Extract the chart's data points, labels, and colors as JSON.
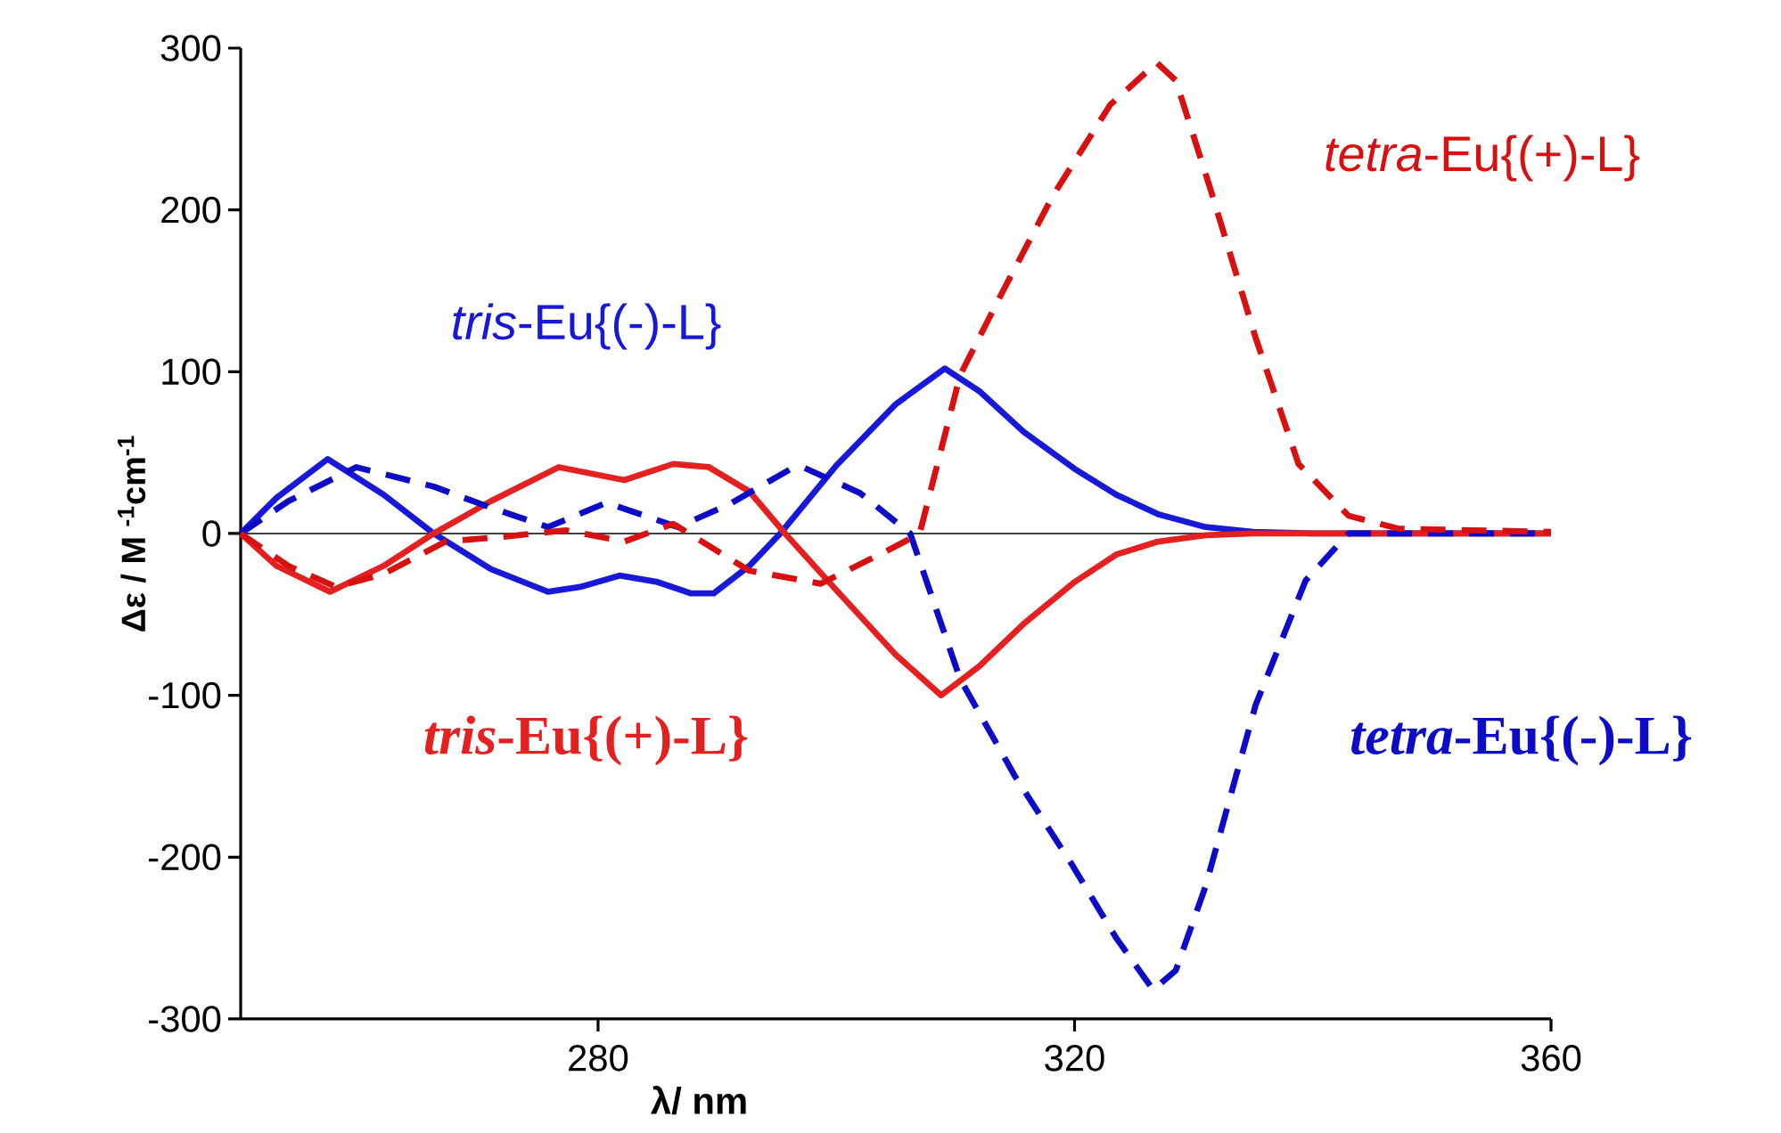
{
  "chart_data": {
    "type": "line",
    "xlabel": "λ/ nm",
    "ylabel": "Δε / M $^{-1}$cm$^{-1}$",
    "xlim": [
      250,
      360
    ],
    "xticks": [
      280,
      320,
      360
    ],
    "ylim": [
      -300,
      300
    ],
    "yticks": [
      -300,
      -200,
      -100,
      0,
      100,
      200,
      300
    ],
    "grid": false,
    "marker": "none",
    "ref_lines": [
      {
        "axis": "y",
        "value": 0,
        "color": "#000000"
      }
    ],
    "series": [
      {
        "name": "*tris*-Eu{(-)-L}",
        "color": "#1818d8",
        "line_style": "solid",
        "x": [
          250,
          253,
          257.3,
          262,
          266.2,
          271,
          275.8,
          278.5,
          281.8,
          285,
          287.8,
          289.7,
          292.7,
          295.3,
          300,
          305,
          309.1,
          312,
          315.7,
          320,
          323.5,
          327,
          331,
          335,
          340,
          350,
          360
        ],
        "values": [
          0,
          22,
          46,
          24,
          0,
          -22,
          -36,
          -33,
          -26,
          -30,
          -37,
          -37,
          -20,
          0,
          42,
          80,
          102,
          88,
          63,
          40,
          24,
          12,
          4,
          1,
          0,
          0,
          0
        ]
      },
      {
        "name": "*tris*-Eu{(+)-L}",
        "color": "#e42020",
        "line_style": "solid",
        "x": [
          250,
          253,
          257.5,
          262,
          266.2,
          271,
          276.7,
          282.2,
          286.3,
          289.3,
          292.7,
          295.7,
          300,
          305,
          308.8,
          312,
          315.7,
          320,
          323.5,
          327,
          331,
          335,
          340,
          350,
          360
        ],
        "values": [
          0,
          -20,
          -36,
          -20,
          0,
          20,
          41,
          33,
          43,
          41,
          26,
          0,
          -35,
          -75,
          -100,
          -82,
          -56,
          -30,
          -13,
          -5,
          -1,
          0,
          0,
          0,
          0
        ]
      },
      {
        "name": "*tetra*-Eu{(-)-L}",
        "color": "#0c0cc8",
        "line_style": "dashed",
        "x": [
          250,
          254,
          259.7,
          266.2,
          271,
          275.8,
          280.7,
          286.7,
          291,
          296.2,
          297.2,
          302,
          306.2,
          310.4,
          315,
          319.9,
          323.5,
          326.6,
          328.5,
          331,
          335.2,
          339.4,
          343,
          350,
          360
        ],
        "values": [
          0,
          20,
          41,
          29,
          16,
          4,
          19,
          4,
          18,
          40,
          41,
          25,
          0,
          -90,
          -150,
          -206,
          -250,
          -282,
          -270,
          -218,
          -106,
          -29,
          0,
          0,
          0
        ]
      },
      {
        "name": "*tetra*-Eu{(+)-L}",
        "color": "#d81010",
        "line_style": "dashed",
        "x": [
          250,
          254,
          258,
          262,
          267.2,
          272,
          277.3,
          282.2,
          286.3,
          292.7,
          298.7,
          304.7,
          307,
          310.4,
          314,
          318.2,
          323,
          326.9,
          328.5,
          331.4,
          335.2,
          338.8,
          343,
          347.2,
          360
        ],
        "values": [
          0,
          -20,
          -33,
          -25,
          -5,
          -2,
          2,
          -5,
          6,
          -23,
          -31,
          -9,
          0,
          98,
          150,
          209,
          265,
          291,
          280,
          213,
          121,
          43,
          11,
          3,
          1
        ]
      }
    ]
  }
}
